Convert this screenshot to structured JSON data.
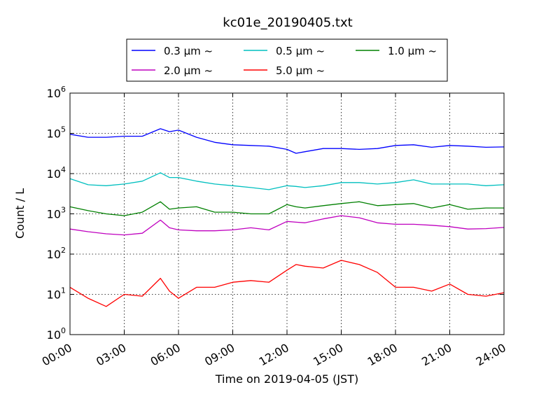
{
  "chart_data": {
    "type": "line",
    "title": "kc01e_20190405.txt",
    "xlabel": "Time on 2019-04-05 (JST)",
    "ylabel": "Count / L",
    "yscale": "log",
    "ylim": [
      1,
      1000000
    ],
    "y_ticks": [
      {
        "base": "10",
        "exp": "0"
      },
      {
        "base": "10",
        "exp": "1"
      },
      {
        "base": "10",
        "exp": "2"
      },
      {
        "base": "10",
        "exp": "3"
      },
      {
        "base": "10",
        "exp": "4"
      },
      {
        "base": "10",
        "exp": "5"
      },
      {
        "base": "10",
        "exp": "6"
      }
    ],
    "x_ticks": [
      "00:00",
      "03:00",
      "06:00",
      "09:00",
      "12:00",
      "15:00",
      "18:00",
      "21:00",
      "24:00"
    ],
    "x_hours": [
      0,
      1,
      2,
      3,
      4,
      5,
      5.5,
      6,
      7,
      8,
      9,
      10,
      11,
      12,
      12.5,
      13,
      14,
      15,
      16,
      17,
      18,
      19,
      20,
      21,
      22,
      23,
      24
    ],
    "grid": true,
    "legend_position": "top-center",
    "series": [
      {
        "name": "0.3 μm ~",
        "color": "#0000ff",
        "values": [
          95000,
          80000,
          80000,
          85000,
          85000,
          130000,
          110000,
          120000,
          80000,
          60000,
          52000,
          50000,
          48000,
          40000,
          32000,
          35000,
          42000,
          42000,
          40000,
          42000,
          50000,
          52000,
          45000,
          50000,
          48000,
          45000,
          46000
        ]
      },
      {
        "name": "0.5 μm ~",
        "color": "#00bfbf",
        "values": [
          7500,
          5300,
          5000,
          5500,
          6500,
          10500,
          8000,
          8000,
          6500,
          5500,
          5000,
          4500,
          4000,
          5000,
          4800,
          4500,
          5000,
          6000,
          6000,
          5500,
          6000,
          7000,
          5500,
          5500,
          5500,
          5000,
          5300
        ]
      },
      {
        "name": "1.0 μm ~",
        "color": "#008000",
        "values": [
          1500,
          1200,
          1000,
          900,
          1100,
          2000,
          1300,
          1400,
          1500,
          1100,
          1100,
          1000,
          1000,
          1700,
          1500,
          1400,
          1600,
          1800,
          2000,
          1600,
          1700,
          1800,
          1400,
          1700,
          1300,
          1400,
          1400
        ]
      },
      {
        "name": "2.0 μm ~",
        "color": "#bf00bf",
        "values": [
          420,
          360,
          320,
          300,
          330,
          700,
          450,
          400,
          380,
          380,
          400,
          450,
          400,
          650,
          620,
          600,
          750,
          900,
          800,
          600,
          550,
          550,
          520,
          480,
          420,
          430,
          460
        ]
      },
      {
        "name": "5.0 μm ~",
        "color": "#ff0000",
        "values": [
          15,
          8,
          5,
          10,
          9,
          25,
          12,
          8,
          15,
          15,
          20,
          22,
          20,
          40,
          55,
          50,
          45,
          70,
          55,
          35,
          15,
          15,
          12,
          18,
          10,
          9,
          11
        ]
      }
    ]
  }
}
